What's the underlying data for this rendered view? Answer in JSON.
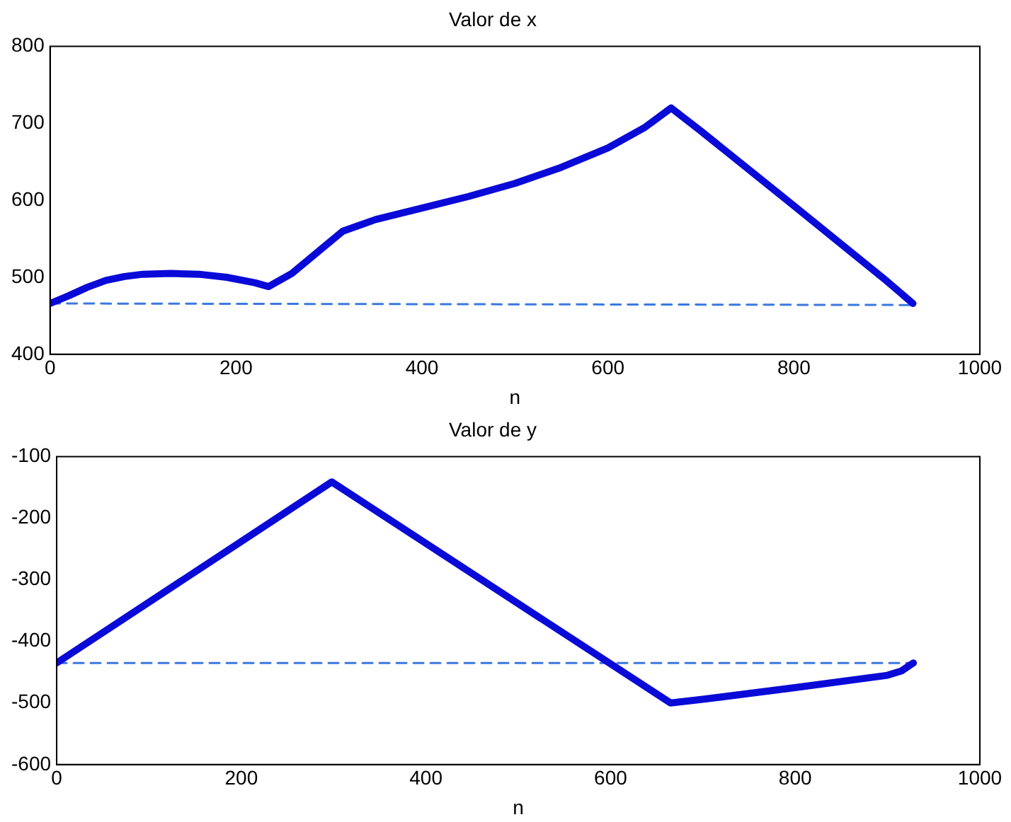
{
  "chart_data": [
    {
      "type": "line",
      "title": "Valor de x",
      "xlabel": "n",
      "xlim": [
        0,
        1000
      ],
      "xticks": [
        0,
        200,
        400,
        600,
        800,
        1000
      ],
      "ylim": [
        400,
        800
      ],
      "yticks": [
        400,
        500,
        600,
        700,
        800
      ],
      "grid": false,
      "legend": false,
      "marker": "none",
      "series": [
        {
          "color": "#0a0ad8",
          "line_style": "solid",
          "x": [
            0,
            20,
            40,
            60,
            80,
            100,
            130,
            160,
            190,
            220,
            235,
            260,
            290,
            315,
            350,
            400,
            450,
            500,
            550,
            600,
            640,
            668,
            700,
            800,
            900,
            928
          ],
          "values": [
            466,
            476,
            487,
            496,
            501,
            504,
            505,
            504,
            500,
            493,
            488,
            505,
            535,
            560,
            575,
            590,
            605,
            622,
            643,
            668,
            695,
            720,
            690,
            593,
            495,
            466
          ]
        },
        {
          "color": "#3a78e0",
          "line_style": "dashed",
          "x": [
            0,
            928
          ],
          "values": [
            466,
            464
          ]
        }
      ]
    },
    {
      "type": "line",
      "title": "Valor de y",
      "xlabel": "n",
      "xlim": [
        0,
        1000
      ],
      "xticks": [
        0,
        200,
        400,
        600,
        800,
        1000
      ],
      "ylim": [
        -600,
        -100
      ],
      "yticks": [
        -600,
        -500,
        -400,
        -300,
        -200,
        -100
      ],
      "grid": false,
      "legend": false,
      "marker": "none",
      "series": [
        {
          "color": "#0a0ad8",
          "line_style": "solid",
          "x": [
            0,
            298,
            665,
            700,
            800,
            900,
            915,
            928
          ],
          "values": [
            -435,
            -141,
            -500,
            -494,
            -475,
            -455,
            -448,
            -435
          ]
        },
        {
          "color": "#3a78e0",
          "line_style": "dashed",
          "x": [
            0,
            928
          ],
          "values": [
            -435,
            -435
          ]
        }
      ]
    }
  ]
}
